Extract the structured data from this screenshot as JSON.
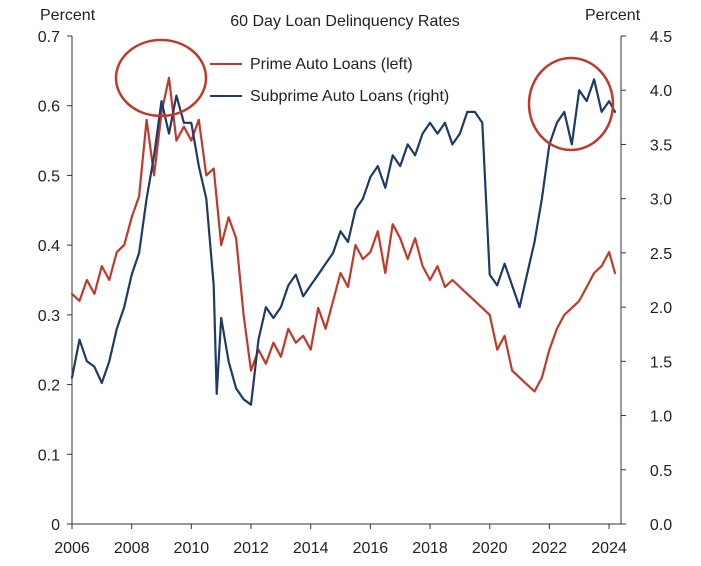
{
  "chart_data": {
    "type": "line",
    "title": "60 Day Loan Delinquency Rates",
    "left_axis_label": "Percent",
    "right_axis_label": "Percent",
    "xlim": [
      2006,
      2024.4
    ],
    "left_ylim": [
      0,
      0.7
    ],
    "right_ylim": [
      0,
      4.5
    ],
    "x_ticks": [
      2006,
      2008,
      2010,
      2012,
      2014,
      2016,
      2018,
      2020,
      2022,
      2024
    ],
    "left_ticks": [
      "0",
      "0.1",
      "0.2",
      "0.3",
      "0.4",
      "0.5",
      "0.6",
      "0.7"
    ],
    "right_ticks": [
      "0.0",
      "0.5",
      "1.0",
      "1.5",
      "2.0",
      "2.5",
      "3.0",
      "3.5",
      "4.0",
      "4.5"
    ],
    "colors": {
      "prime": "#c0392b",
      "subprime": "#1f3a66",
      "highlight": "#c0392b"
    },
    "series": [
      {
        "name": "Prime Auto Loans (left)",
        "axis": "left",
        "x": [
          2006.0,
          2006.25,
          2006.5,
          2006.75,
          2007.0,
          2007.25,
          2007.5,
          2007.75,
          2008.0,
          2008.25,
          2008.5,
          2008.75,
          2009.0,
          2009.25,
          2009.5,
          2009.75,
          2010.0,
          2010.25,
          2010.5,
          2010.75,
          2011.0,
          2011.25,
          2011.5,
          2011.75,
          2012.0,
          2012.25,
          2012.5,
          2012.75,
          2013.0,
          2013.25,
          2013.5,
          2013.75,
          2014.0,
          2014.25,
          2014.5,
          2014.75,
          2015.0,
          2015.25,
          2015.5,
          2015.75,
          2016.0,
          2016.25,
          2016.5,
          2016.75,
          2017.0,
          2017.25,
          2017.5,
          2017.75,
          2018.0,
          2018.25,
          2018.5,
          2018.75,
          2019.0,
          2019.25,
          2019.5,
          2019.75,
          2020.0,
          2020.25,
          2020.5,
          2020.75,
          2021.0,
          2021.25,
          2021.5,
          2021.75,
          2022.0,
          2022.25,
          2022.5,
          2022.75,
          2023.0,
          2023.25,
          2023.5,
          2023.75,
          2024.0,
          2024.2
        ],
        "values": [
          0.33,
          0.32,
          0.35,
          0.33,
          0.37,
          0.35,
          0.39,
          0.4,
          0.44,
          0.47,
          0.58,
          0.5,
          0.59,
          0.64,
          0.55,
          0.57,
          0.55,
          0.58,
          0.5,
          0.51,
          0.4,
          0.44,
          0.41,
          0.3,
          0.22,
          0.25,
          0.23,
          0.26,
          0.24,
          0.28,
          0.26,
          0.27,
          0.25,
          0.31,
          0.28,
          0.32,
          0.36,
          0.34,
          0.4,
          0.38,
          0.39,
          0.42,
          0.36,
          0.43,
          0.41,
          0.38,
          0.41,
          0.37,
          0.35,
          0.37,
          0.34,
          0.35,
          0.34,
          0.33,
          0.32,
          0.31,
          0.3,
          0.25,
          0.27,
          0.22,
          0.21,
          0.2,
          0.19,
          0.21,
          0.25,
          0.28,
          0.3,
          0.31,
          0.32,
          0.34,
          0.36,
          0.37,
          0.39,
          0.36
        ]
      },
      {
        "name": "Subprime Auto Loans (right)",
        "axis": "right",
        "x": [
          2006.0,
          2006.25,
          2006.5,
          2006.75,
          2007.0,
          2007.25,
          2007.5,
          2007.75,
          2008.0,
          2008.25,
          2008.5,
          2008.75,
          2009.0,
          2009.25,
          2009.5,
          2009.75,
          2010.0,
          2010.25,
          2010.5,
          2010.75,
          2010.85,
          2011.0,
          2011.25,
          2011.5,
          2011.75,
          2012.0,
          2012.25,
          2012.5,
          2012.75,
          2013.0,
          2013.25,
          2013.5,
          2013.75,
          2014.0,
          2014.25,
          2014.5,
          2014.75,
          2015.0,
          2015.25,
          2015.5,
          2015.75,
          2016.0,
          2016.25,
          2016.5,
          2016.75,
          2017.0,
          2017.25,
          2017.5,
          2017.75,
          2018.0,
          2018.25,
          2018.5,
          2018.75,
          2019.0,
          2019.25,
          2019.5,
          2019.75,
          2020.0,
          2020.25,
          2020.5,
          2020.75,
          2021.0,
          2021.25,
          2021.5,
          2021.75,
          2022.0,
          2022.25,
          2022.5,
          2022.75,
          2023.0,
          2023.25,
          2023.5,
          2023.75,
          2024.0,
          2024.2
        ],
        "values": [
          1.35,
          1.7,
          1.5,
          1.45,
          1.3,
          1.5,
          1.8,
          2.0,
          2.3,
          2.5,
          3.0,
          3.4,
          3.9,
          3.6,
          3.95,
          3.7,
          3.7,
          3.3,
          3.0,
          2.2,
          1.2,
          1.9,
          1.5,
          1.25,
          1.15,
          1.1,
          1.7,
          2.0,
          1.9,
          2.0,
          2.2,
          2.3,
          2.1,
          2.2,
          2.3,
          2.4,
          2.5,
          2.7,
          2.6,
          2.9,
          3.0,
          3.2,
          3.3,
          3.1,
          3.4,
          3.3,
          3.5,
          3.4,
          3.6,
          3.7,
          3.6,
          3.7,
          3.5,
          3.6,
          3.8,
          3.8,
          3.7,
          2.3,
          2.2,
          2.4,
          2.2,
          2.0,
          2.3,
          2.6,
          3.0,
          3.5,
          3.7,
          3.8,
          3.5,
          4.0,
          3.9,
          4.1,
          3.8,
          3.9,
          3.8
        ]
      }
    ]
  }
}
